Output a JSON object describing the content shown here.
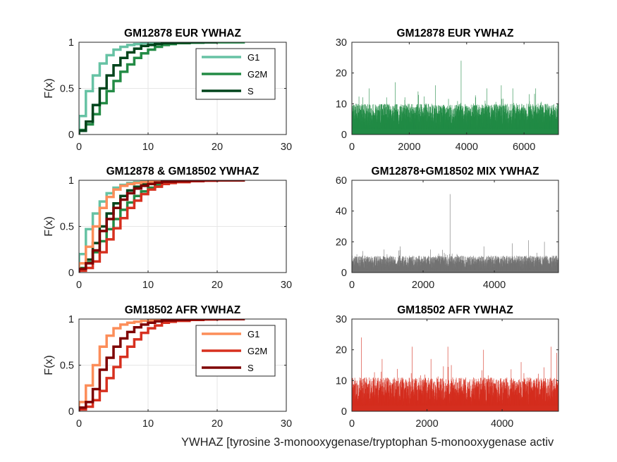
{
  "figure": {
    "xlabel": "YWHAZ [tyrosine 3-monooxygenase/tryptophan 5-monooxygenase activ"
  },
  "colors": {
    "eur": [
      "#66c2a4",
      "#238b45",
      "#00441b"
    ],
    "afr": [
      "#fc8d59",
      "#d7301f",
      "#7f0000"
    ],
    "eur_bar": "#228b46",
    "mix_bar": "#737373",
    "afr_bar": "#d42e1f"
  },
  "chart_data": [
    {
      "id": "ecdf_eur",
      "type": "line",
      "subtype": "ecdf-step",
      "title": "GM12878 EUR YWHAZ",
      "xlabel": "",
      "ylabel": "F(x)",
      "xlim": [
        0,
        30
      ],
      "ylim": [
        0,
        1
      ],
      "xticks": [
        0,
        10,
        20,
        30
      ],
      "yticks": [
        0,
        0.5,
        1
      ],
      "grid": true,
      "legend": "inside-upper-right",
      "series": [
        {
          "name": "G1",
          "color": "#66c2a4",
          "x": [
            0,
            1,
            2,
            3,
            4,
            5,
            6,
            7,
            8,
            9,
            10,
            12,
            14,
            16,
            18,
            20,
            24
          ],
          "y": [
            0.2,
            0.47,
            0.64,
            0.77,
            0.86,
            0.92,
            0.95,
            0.97,
            0.98,
            0.99,
            0.995,
            0.998,
            1,
            1,
            1,
            1,
            1
          ]
        },
        {
          "name": "G2M",
          "color": "#238b45",
          "x": [
            0,
            1,
            2,
            3,
            4,
            5,
            6,
            7,
            8,
            9,
            10,
            11,
            12,
            13,
            14,
            16,
            18,
            20,
            24
          ],
          "y": [
            0.05,
            0.11,
            0.22,
            0.34,
            0.47,
            0.58,
            0.68,
            0.76,
            0.83,
            0.88,
            0.92,
            0.95,
            0.97,
            0.98,
            0.99,
            0.995,
            1,
            1,
            1
          ]
        },
        {
          "name": "S",
          "color": "#00441b",
          "x": [
            0,
            1,
            2,
            3,
            4,
            5,
            6,
            7,
            8,
            9,
            10,
            11,
            12,
            14,
            16,
            18,
            20
          ],
          "y": [
            0.04,
            0.14,
            0.32,
            0.5,
            0.64,
            0.75,
            0.83,
            0.89,
            0.93,
            0.96,
            0.97,
            0.98,
            0.99,
            0.995,
            1,
            1,
            1
          ]
        }
      ]
    },
    {
      "id": "bar_eur",
      "type": "bar",
      "title": "GM12878 EUR YWHAZ",
      "xlim": [
        0,
        7200
      ],
      "ylim": [
        0,
        30
      ],
      "xticks": [
        0,
        2000,
        4000,
        6000
      ],
      "yticks": [
        0,
        10,
        20,
        30
      ],
      "count": 7200,
      "base_max": 10,
      "spikes": [
        [
          3800,
          24
        ],
        [
          1500,
          17
        ],
        [
          2900,
          16
        ],
        [
          5200,
          16
        ],
        [
          6400,
          15
        ],
        [
          4700,
          15
        ],
        [
          600,
          15
        ],
        [
          5600,
          15
        ],
        [
          2300,
          14
        ]
      ],
      "color": "#228b46"
    },
    {
      "id": "ecdf_mix",
      "type": "line",
      "subtype": "ecdf-step",
      "title": "GM12878 & GM18502 YWHAZ",
      "xlabel": "",
      "ylabel": "F(x)",
      "xlim": [
        0,
        30
      ],
      "ylim": [
        0,
        1
      ],
      "xticks": [
        0,
        10,
        20,
        30
      ],
      "yticks": [
        0,
        0.5,
        1
      ],
      "grid": true,
      "series": [
        {
          "color": "#66c2a4",
          "x": [
            0,
            1,
            2,
            3,
            4,
            5,
            6,
            7,
            8,
            9,
            10,
            12,
            14,
            16,
            18,
            20,
            24
          ],
          "y": [
            0.2,
            0.47,
            0.64,
            0.77,
            0.86,
            0.92,
            0.95,
            0.97,
            0.98,
            0.99,
            0.995,
            0.998,
            1,
            1,
            1,
            1,
            1
          ]
        },
        {
          "color": "#238b45",
          "x": [
            0,
            1,
            2,
            3,
            4,
            5,
            6,
            7,
            8,
            9,
            10,
            11,
            12,
            13,
            14,
            16,
            18,
            20,
            24
          ],
          "y": [
            0.05,
            0.11,
            0.22,
            0.34,
            0.47,
            0.58,
            0.68,
            0.76,
            0.83,
            0.88,
            0.92,
            0.95,
            0.97,
            0.98,
            0.99,
            0.995,
            1,
            1,
            1
          ]
        },
        {
          "color": "#00441b",
          "x": [
            0,
            1,
            2,
            3,
            4,
            5,
            6,
            7,
            8,
            9,
            10,
            11,
            12,
            14,
            16,
            18,
            20
          ],
          "y": [
            0.04,
            0.14,
            0.32,
            0.5,
            0.64,
            0.75,
            0.83,
            0.89,
            0.93,
            0.96,
            0.97,
            0.98,
            0.99,
            0.995,
            1,
            1,
            1
          ]
        },
        {
          "color": "#fc8d59",
          "x": [
            0,
            1,
            2,
            3,
            4,
            5,
            6,
            7,
            8,
            9,
            10,
            12,
            14,
            16,
            18,
            20,
            24
          ],
          "y": [
            0.1,
            0.28,
            0.5,
            0.7,
            0.82,
            0.9,
            0.94,
            0.96,
            0.97,
            0.98,
            0.985,
            0.99,
            0.995,
            1,
            1,
            1,
            1
          ]
        },
        {
          "color": "#d7301f",
          "x": [
            0,
            1,
            2,
            3,
            4,
            5,
            6,
            7,
            8,
            9,
            10,
            11,
            12,
            13,
            14,
            16,
            18,
            20,
            24
          ],
          "y": [
            0.02,
            0.05,
            0.12,
            0.22,
            0.36,
            0.48,
            0.59,
            0.7,
            0.78,
            0.85,
            0.9,
            0.93,
            0.96,
            0.97,
            0.98,
            0.99,
            0.995,
            1,
            1
          ]
        },
        {
          "color": "#7f0000",
          "x": [
            0,
            1,
            2,
            3,
            4,
            5,
            6,
            7,
            8,
            9,
            10,
            11,
            12,
            14,
            16,
            18,
            20,
            24
          ],
          "y": [
            0.04,
            0.1,
            0.24,
            0.45,
            0.58,
            0.7,
            0.79,
            0.86,
            0.91,
            0.94,
            0.96,
            0.975,
            0.985,
            0.99,
            0.995,
            1,
            1,
            1
          ]
        }
      ]
    },
    {
      "id": "bar_mix",
      "type": "bar",
      "title": "GM12878+GM18502 MIX YWHAZ",
      "xlim": [
        0,
        5800
      ],
      "ylim": [
        0,
        60
      ],
      "xticks": [
        0,
        2000,
        4000
      ],
      "yticks": [
        0,
        20,
        40,
        60
      ],
      "count": 5800,
      "base_max": 11,
      "spikes": [
        [
          2750,
          51
        ],
        [
          4950,
          21
        ],
        [
          5400,
          20
        ],
        [
          4500,
          19
        ],
        [
          1350,
          17
        ],
        [
          3700,
          17
        ],
        [
          900,
          15
        ],
        [
          2200,
          15
        ],
        [
          300,
          14
        ]
      ],
      "color": "#737373"
    },
    {
      "id": "ecdf_afr",
      "type": "line",
      "subtype": "ecdf-step",
      "title": "GM18502 AFR YWHAZ",
      "xlabel": "",
      "ylabel": "F(x)",
      "xlim": [
        0,
        30
      ],
      "ylim": [
        0,
        1
      ],
      "xticks": [
        0,
        10,
        20,
        30
      ],
      "yticks": [
        0,
        0.5,
        1
      ],
      "grid": true,
      "legend": "inside-upper-right",
      "series": [
        {
          "name": "G1",
          "color": "#fc8d59",
          "x": [
            0,
            1,
            2,
            3,
            4,
            5,
            6,
            7,
            8,
            9,
            10,
            12,
            14,
            16,
            18,
            20,
            24
          ],
          "y": [
            0.1,
            0.28,
            0.5,
            0.7,
            0.82,
            0.9,
            0.94,
            0.96,
            0.97,
            0.98,
            0.985,
            0.99,
            0.995,
            1,
            1,
            1,
            1
          ]
        },
        {
          "name": "G2M",
          "color": "#d7301f",
          "x": [
            0,
            1,
            2,
            3,
            4,
            5,
            6,
            7,
            8,
            9,
            10,
            11,
            12,
            13,
            14,
            16,
            18,
            20,
            24
          ],
          "y": [
            0.02,
            0.05,
            0.12,
            0.22,
            0.36,
            0.48,
            0.59,
            0.7,
            0.78,
            0.85,
            0.9,
            0.93,
            0.96,
            0.97,
            0.98,
            0.99,
            0.995,
            1,
            1
          ]
        },
        {
          "name": "S",
          "color": "#7f0000",
          "x": [
            0,
            1,
            2,
            3,
            4,
            5,
            6,
            7,
            8,
            9,
            10,
            11,
            12,
            14,
            16,
            18,
            20,
            24
          ],
          "y": [
            0.04,
            0.1,
            0.24,
            0.45,
            0.58,
            0.7,
            0.79,
            0.86,
            0.91,
            0.94,
            0.96,
            0.975,
            0.985,
            0.99,
            0.995,
            1,
            1,
            1
          ]
        }
      ]
    },
    {
      "id": "bar_afr",
      "type": "bar",
      "title": "GM18502 AFR YWHAZ",
      "xlim": [
        0,
        5500
      ],
      "ylim": [
        0,
        30
      ],
      "xticks": [
        0,
        2000,
        4000
      ],
      "yticks": [
        0,
        10,
        20,
        30
      ],
      "count": 5500,
      "base_max": 11,
      "spikes": [
        [
          250,
          24
        ],
        [
          1600,
          21
        ],
        [
          2550,
          21
        ],
        [
          3500,
          20
        ],
        [
          5300,
          21
        ],
        [
          5450,
          19
        ],
        [
          800,
          17
        ],
        [
          4500,
          16
        ],
        [
          2100,
          17
        ]
      ],
      "color": "#d42e1f"
    }
  ]
}
